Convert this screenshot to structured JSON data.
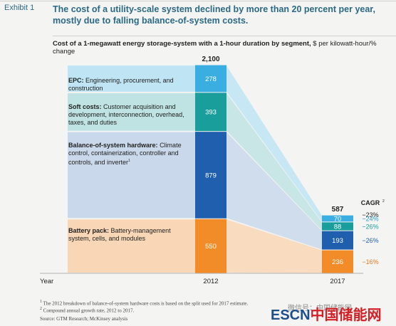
{
  "header": {
    "exhibit": "Exhibit 1",
    "headline": "The cost of a utility-scale system declined by more than 20 percent per year, mostly due to falling balance-of-system costs."
  },
  "chart_data": {
    "type": "bar",
    "title": "Cost of a 1-megawatt energy storage-system with a 1-hour duration by segment,",
    "unit_note": "$ per kilowatt-hour/% change",
    "xlabel": "Year",
    "categories": [
      "2012",
      "2017"
    ],
    "totals": [
      2100,
      587
    ],
    "cagr_label": "CAGR",
    "series": [
      {
        "key": "battery",
        "name": "Battery pack:",
        "desc": "Battery-management system, cells, and modules",
        "values": [
          550,
          236
        ],
        "cagr": "−16%",
        "color": "#f28c28",
        "band": "#f9d7b6",
        "cagr_color": "#e07b1e"
      },
      {
        "key": "bos",
        "name": "Balance-of-system hardware:",
        "desc": "Climate control, containerization, controller and controls, and inverter",
        "values": [
          879,
          193
        ],
        "cagr": "−26%",
        "color": "#1f5fad",
        "band": "#c9d8ea",
        "cagr_color": "#1f5fad"
      },
      {
        "key": "soft",
        "name": "Soft costs:",
        "desc": "Customer acquisition and development, interconnection, overhead, taxes, and duties",
        "values": [
          393,
          88
        ],
        "cagr": "−26%",
        "color": "#1a9e9c",
        "band": "#bfe3e2",
        "cagr_color": "#1a9e9c"
      },
      {
        "key": "epc",
        "name": "EPC:",
        "desc": "Engineering, procurement, and construction",
        "values": [
          278,
          70
        ],
        "cagr": "−24%",
        "color": "#3aaee0",
        "band": "#bfe4f3",
        "cagr_color": "#2e9dcc"
      }
    ],
    "total_cagr": "−23%"
  },
  "footnotes": {
    "f1": "The 2012 breakdown of balance-of-system hardware costs is based on the split used for 2017 estimate.",
    "f2": "Compound annual growth rate, 2012 to 2017.",
    "source": "Source: GTM Research; McKinsey analysis"
  },
  "watermark": {
    "brand": "ESCN",
    "cn": "中国储能网",
    "small": "微信号：中国储能网"
  }
}
